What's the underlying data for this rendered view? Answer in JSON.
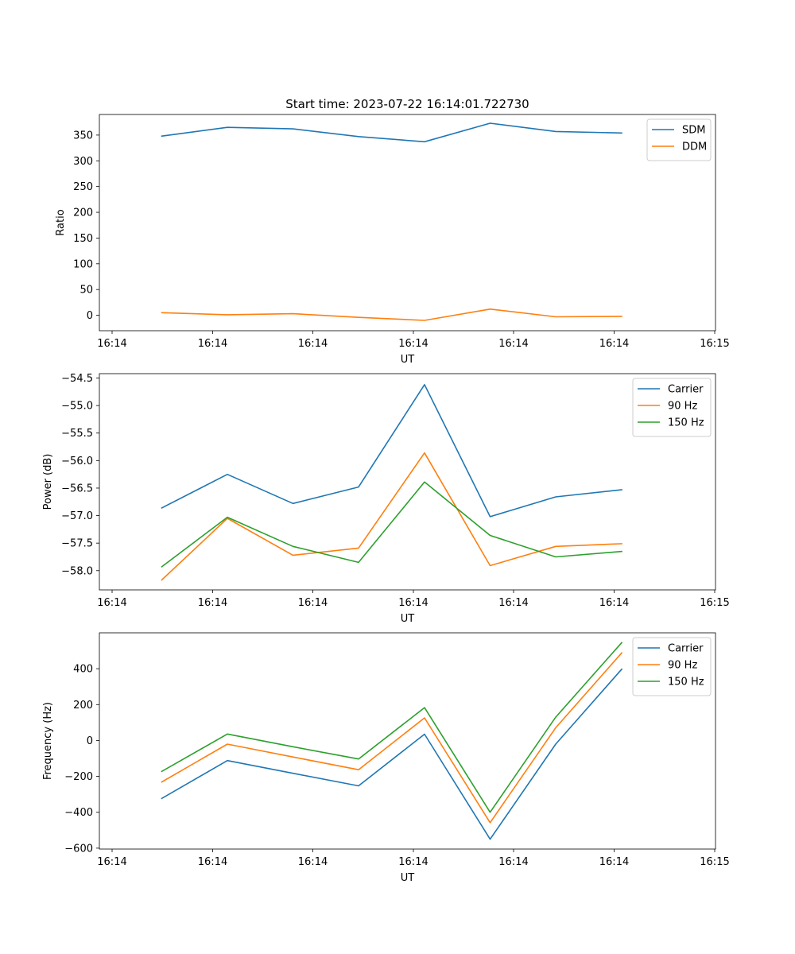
{
  "figure": {
    "title": "Start time: 2023-07-22 16:14:01.722730"
  },
  "chart_data": [
    {
      "type": "line",
      "title": "Start time: 2023-07-22 16:14:01.722730",
      "xlabel": "UT",
      "ylabel": "Ratio",
      "x_tick_labels": [
        "16:14",
        "16:14",
        "16:14",
        "16:14",
        "16:14",
        "16:14",
        "16:14"
      ],
      "x_last_tick_label": "16:15",
      "yticks": [
        0,
        50,
        100,
        150,
        200,
        250,
        300,
        350
      ],
      "ylim": [
        -30,
        390
      ],
      "legend": "upper right",
      "series": [
        {
          "name": "SDM",
          "color": "#1f77b4",
          "values": [
            348,
            365,
            362,
            347,
            337,
            373,
            357,
            354
          ]
        },
        {
          "name": "DDM",
          "color": "#ff7f0e",
          "values": [
            5,
            1,
            3,
            -4,
            -10,
            12,
            -3,
            -2
          ]
        }
      ]
    },
    {
      "type": "line",
      "title": "",
      "xlabel": "UT",
      "ylabel": "Power (dB)",
      "x_tick_labels": [
        "16:14",
        "16:14",
        "16:14",
        "16:14",
        "16:14",
        "16:14",
        "16:14"
      ],
      "x_last_tick_label": "16:15",
      "yticks": [
        -58.0,
        -57.5,
        -57.0,
        -56.5,
        -56.0,
        -55.5,
        -55.0,
        -54.5
      ],
      "ytick_labels": [
        "−58.0",
        "−57.5",
        "−57.0",
        "−56.5",
        "−56.0",
        "−55.5",
        "−55.0",
        "−54.5"
      ],
      "ylim": [
        -58.35,
        -54.42
      ],
      "legend": "upper right",
      "series": [
        {
          "name": "Carrier",
          "color": "#1f77b4",
          "values": [
            -56.86,
            -56.25,
            -56.78,
            -56.48,
            -54.62,
            -57.02,
            -56.66,
            -56.53
          ]
        },
        {
          "name": "90 Hz",
          "color": "#ff7f0e",
          "values": [
            -58.17,
            -57.05,
            -57.72,
            -57.59,
            -55.86,
            -57.91,
            -57.56,
            -57.51
          ]
        },
        {
          "name": "150 Hz",
          "color": "#2ca02c",
          "values": [
            -57.93,
            -57.03,
            -57.56,
            -57.85,
            -56.39,
            -57.36,
            -57.75,
            -57.65
          ]
        }
      ]
    },
    {
      "type": "line",
      "title": "",
      "xlabel": "UT",
      "ylabel": "Frequency (Hz)",
      "x_tick_labels": [
        "16:14",
        "16:14",
        "16:14",
        "16:14",
        "16:14",
        "16:14",
        "16:14"
      ],
      "x_last_tick_label": "16:15",
      "yticks": [
        -600,
        -400,
        -200,
        0,
        200,
        400
      ],
      "ytick_labels": [
        "−600",
        "−400",
        "−200",
        "0",
        "200",
        "400"
      ],
      "ylim": [
        -605,
        600
      ],
      "legend": "upper right",
      "series": [
        {
          "name": "Carrier",
          "color": "#1f77b4",
          "values": [
            -323,
            -112,
            -183,
            -253,
            35,
            -550,
            -20,
            397
          ]
        },
        {
          "name": "90 Hz",
          "color": "#ff7f0e",
          "values": [
            -231,
            -20,
            -92,
            -163,
            126,
            -458,
            71,
            488
          ]
        },
        {
          "name": "150 Hz",
          "color": "#2ca02c",
          "values": [
            -172,
            36,
            -35,
            -103,
            183,
            -400,
            130,
            545
          ]
        }
      ]
    }
  ]
}
